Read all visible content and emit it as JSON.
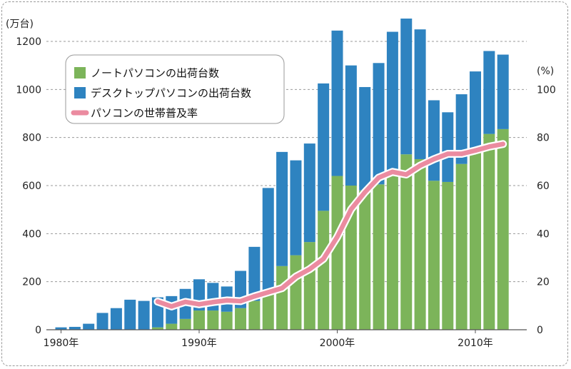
{
  "chart_data": {
    "type": "bar",
    "title": "",
    "y_left_unit": "(万台)",
    "y_right_unit": "(%)",
    "ylim_left": [
      0,
      1200
    ],
    "ylim_right": [
      0,
      120
    ],
    "left_ticks": [
      0,
      200,
      400,
      600,
      800,
      1000,
      1200
    ],
    "right_ticks": [
      0,
      20,
      40,
      60,
      80,
      100
    ],
    "x_ticks": [
      {
        "year": 1980,
        "label": "1980年"
      },
      {
        "year": 1990,
        "label": "1990年"
      },
      {
        "year": 2000,
        "label": "2000年"
      },
      {
        "year": 2010,
        "label": "2010年"
      }
    ],
    "grid": true,
    "legend_position": "top-left",
    "years": [
      1980,
      1981,
      1982,
      1983,
      1984,
      1985,
      1986,
      1987,
      1988,
      1989,
      1990,
      1991,
      1992,
      1993,
      1994,
      1995,
      1996,
      1997,
      1998,
      1999,
      2000,
      2001,
      2002,
      2003,
      2004,
      2005,
      2006,
      2007,
      2008,
      2009,
      2010,
      2011,
      2012
    ],
    "series": [
      {
        "name": "ノートパソコンの出荷台数",
        "kind": "bar-stack",
        "color": "#7cb45a",
        "values": [
          0,
          0,
          0,
          0,
          0,
          0,
          0,
          10,
          25,
          45,
          80,
          80,
          75,
          90,
          120,
          155,
          265,
          310,
          365,
          495,
          640,
          600,
          580,
          605,
          650,
          730,
          710,
          620,
          615,
          690,
          750,
          815,
          835
        ]
      },
      {
        "name": "デスクトップパソコンの出荷台数",
        "kind": "bar-stack",
        "color": "#2e83c0",
        "values": [
          10,
          12,
          25,
          70,
          90,
          125,
          120,
          125,
          115,
          125,
          130,
          115,
          105,
          155,
          225,
          435,
          475,
          395,
          410,
          530,
          605,
          500,
          430,
          505,
          590,
          565,
          540,
          335,
          290,
          290,
          325,
          345,
          310
        ]
      },
      {
        "name": "パソコンの世帯普及率",
        "kind": "line",
        "axis": "right",
        "color": "#eb8ba0",
        "values": [
          null,
          null,
          null,
          null,
          null,
          null,
          null,
          11.7,
          9.7,
          11.6,
          10.6,
          11.5,
          12.2,
          11.9,
          13.9,
          15.6,
          17.3,
          22.1,
          25.2,
          29.5,
          38.6,
          50.1,
          57.2,
          63.3,
          65.7,
          64.6,
          68.3,
          71.0,
          73.2,
          73.2,
          74.6,
          76.2,
          77.3
        ]
      }
    ]
  }
}
